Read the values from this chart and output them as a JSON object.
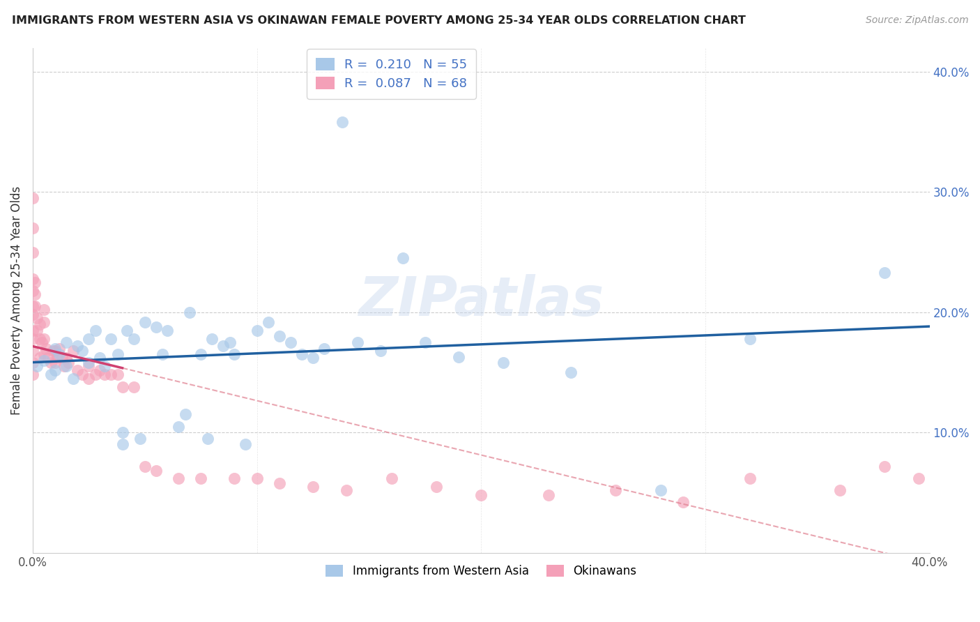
{
  "title": "IMMIGRANTS FROM WESTERN ASIA VS OKINAWAN FEMALE POVERTY AMONG 25-34 YEAR OLDS CORRELATION CHART",
  "source": "Source: ZipAtlas.com",
  "ylabel": "Female Poverty Among 25-34 Year Olds",
  "xlim": [
    0.0,
    0.4
  ],
  "ylim": [
    0.0,
    0.42
  ],
  "ytick_positions": [
    0.1,
    0.2,
    0.3,
    0.4
  ],
  "ytick_labels": [
    "10.0%",
    "20.0%",
    "30.0%",
    "40.0%"
  ],
  "watermark": "ZIPatlas",
  "legend_R1": "R =  0.210   N = 55",
  "legend_R2": "R =  0.087   N = 68",
  "color_blue": "#a8c8e8",
  "color_pink": "#f4a0b8",
  "color_blue_line": "#2060a0",
  "color_pink_line": "#d04070",
  "color_pink_dashed": "#e08090",
  "legend_label1": "Immigrants from Western Asia",
  "legend_label2": "Okinawans",
  "blue_x": [
    0.002,
    0.005,
    0.008,
    0.01,
    0.01,
    0.012,
    0.015,
    0.015,
    0.018,
    0.02,
    0.022,
    0.025,
    0.025,
    0.028,
    0.03,
    0.032,
    0.035,
    0.038,
    0.04,
    0.04,
    0.042,
    0.045,
    0.048,
    0.05,
    0.055,
    0.058,
    0.06,
    0.065,
    0.068,
    0.07,
    0.075,
    0.078,
    0.08,
    0.085,
    0.088,
    0.09,
    0.095,
    0.1,
    0.105,
    0.11,
    0.115,
    0.12,
    0.125,
    0.13,
    0.138,
    0.145,
    0.155,
    0.165,
    0.175,
    0.19,
    0.21,
    0.24,
    0.28,
    0.32,
    0.38
  ],
  "blue_y": [
    0.155,
    0.16,
    0.148,
    0.152,
    0.17,
    0.165,
    0.155,
    0.175,
    0.145,
    0.172,
    0.168,
    0.158,
    0.178,
    0.185,
    0.162,
    0.155,
    0.178,
    0.165,
    0.09,
    0.1,
    0.185,
    0.178,
    0.095,
    0.192,
    0.188,
    0.165,
    0.185,
    0.105,
    0.115,
    0.2,
    0.165,
    0.095,
    0.178,
    0.172,
    0.175,
    0.165,
    0.09,
    0.185,
    0.192,
    0.18,
    0.175,
    0.165,
    0.162,
    0.17,
    0.358,
    0.175,
    0.168,
    0.245,
    0.175,
    0.163,
    0.158,
    0.15,
    0.052,
    0.178,
    0.233
  ],
  "pink_x": [
    0.0,
    0.0,
    0.0,
    0.0,
    0.0,
    0.0,
    0.0,
    0.0,
    0.0,
    0.0,
    0.0,
    0.0,
    0.001,
    0.001,
    0.001,
    0.002,
    0.002,
    0.003,
    0.003,
    0.003,
    0.004,
    0.005,
    0.005,
    0.005,
    0.005,
    0.006,
    0.007,
    0.008,
    0.009,
    0.01,
    0.01,
    0.011,
    0.012,
    0.013,
    0.014,
    0.015,
    0.016,
    0.018,
    0.02,
    0.022,
    0.025,
    0.025,
    0.028,
    0.03,
    0.032,
    0.035,
    0.038,
    0.04,
    0.045,
    0.05,
    0.055,
    0.065,
    0.075,
    0.09,
    0.1,
    0.11,
    0.125,
    0.14,
    0.16,
    0.18,
    0.2,
    0.23,
    0.26,
    0.29,
    0.32,
    0.36,
    0.38,
    0.395
  ],
  "pink_y": [
    0.295,
    0.27,
    0.25,
    0.228,
    0.218,
    0.205,
    0.198,
    0.185,
    0.178,
    0.168,
    0.158,
    0.148,
    0.205,
    0.215,
    0.225,
    0.195,
    0.185,
    0.178,
    0.19,
    0.162,
    0.175,
    0.165,
    0.178,
    0.192,
    0.202,
    0.17,
    0.162,
    0.158,
    0.168,
    0.158,
    0.168,
    0.162,
    0.17,
    0.162,
    0.155,
    0.162,
    0.158,
    0.168,
    0.152,
    0.148,
    0.145,
    0.155,
    0.148,
    0.152,
    0.148,
    0.148,
    0.148,
    0.138,
    0.138,
    0.072,
    0.068,
    0.062,
    0.062,
    0.062,
    0.062,
    0.058,
    0.055,
    0.052,
    0.062,
    0.055,
    0.048,
    0.048,
    0.052,
    0.042,
    0.062,
    0.052,
    0.072,
    0.062
  ]
}
